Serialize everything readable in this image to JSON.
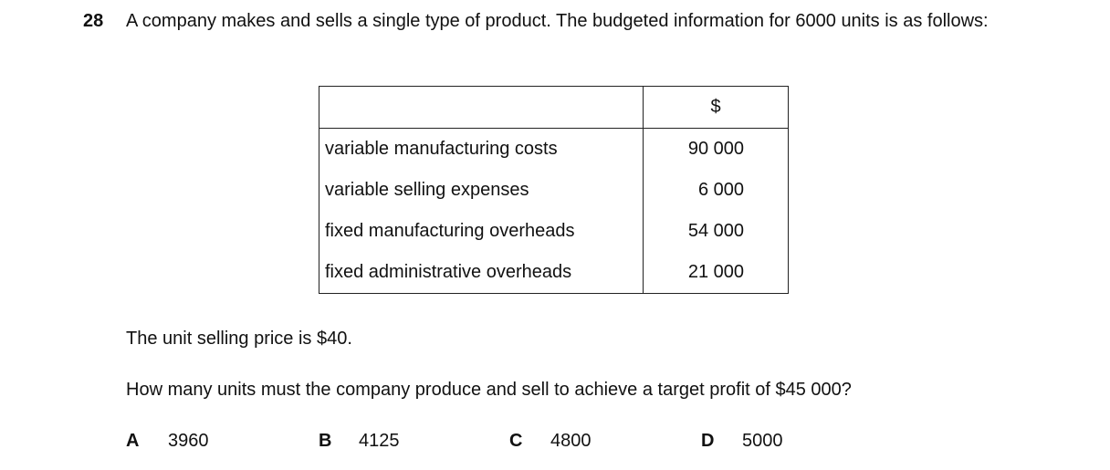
{
  "question": {
    "number": "28",
    "text": "A company makes and sells a single type of product. The budgeted information for 6000 units is as follows:"
  },
  "table": {
    "header": [
      "",
      "$"
    ],
    "rows": [
      [
        "variable manufacturing costs",
        "90 000"
      ],
      [
        "variable selling expenses",
        "6 000"
      ],
      [
        "fixed manufacturing overheads",
        "54 000"
      ],
      [
        "fixed administrative overheads",
        "21 000"
      ]
    ]
  },
  "statement": "The unit selling price is $40.",
  "prompt": "How many units must the company produce and sell to achieve a target profit of $45 000?",
  "options": [
    {
      "letter": "A",
      "text": "3960"
    },
    {
      "letter": "B",
      "text": "4125"
    },
    {
      "letter": "C",
      "text": "4800"
    },
    {
      "letter": "D",
      "text": "5000"
    }
  ]
}
